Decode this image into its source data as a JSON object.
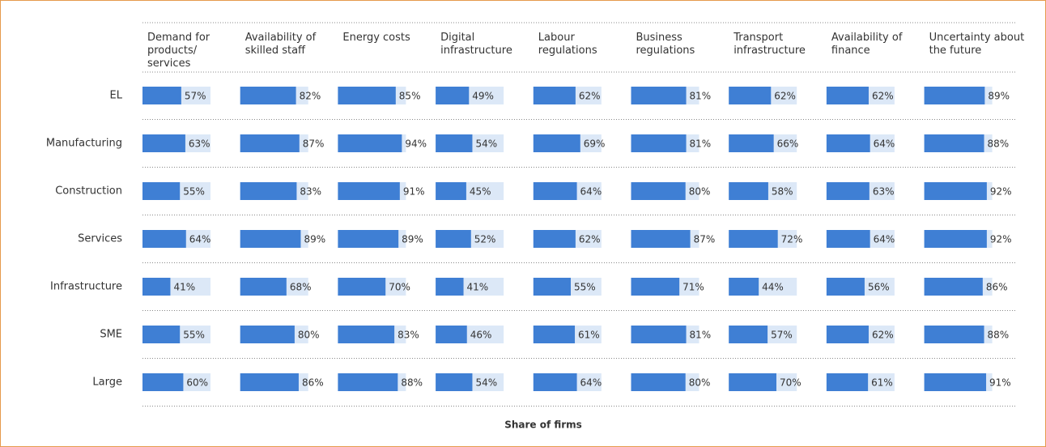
{
  "chart_data": {
    "type": "bar",
    "xlabel": "Share of firms",
    "xlim": [
      0,
      100
    ],
    "color": "#3f7fd4",
    "categories": [
      "EL",
      "Manufacturing",
      "Construction",
      "Services",
      "Infrastructure",
      "SME",
      "Large"
    ],
    "series": [
      {
        "name": "Demand for products/ services",
        "values": [
          57,
          63,
          55,
          64,
          41,
          55,
          60
        ],
        "value_labels": [
          "57%",
          "63%",
          "55%",
          "64%",
          "41%",
          "55%",
          "60%"
        ]
      },
      {
        "name": "Availability of skilled staff",
        "values": [
          82,
          87,
          83,
          89,
          68,
          80,
          86
        ],
        "value_labels": [
          "82%",
          "87%",
          "83%",
          "89%",
          "68%",
          "80%",
          "86%"
        ]
      },
      {
        "name": "Energy costs",
        "values": [
          85,
          94,
          91,
          89,
          70,
          83,
          88
        ],
        "value_labels": [
          "85%",
          "94%",
          "91%",
          "89%",
          "70%",
          "83%",
          "88%"
        ]
      },
      {
        "name": "Digital infrastructure",
        "values": [
          49,
          54,
          45,
          52,
          41,
          46,
          54
        ],
        "value_labels": [
          "49%",
          "54%",
          "45%",
          "52%",
          "41%",
          "46%",
          "54%"
        ]
      },
      {
        "name": "Labour regulations",
        "values": [
          62,
          69,
          64,
          62,
          55,
          61,
          64
        ],
        "value_labels": [
          "62%",
          "69%",
          "64%",
          "62%",
          "55%",
          "61%",
          "64%"
        ]
      },
      {
        "name": "Business regulations",
        "values": [
          81,
          81,
          80,
          87,
          71,
          81,
          80
        ],
        "value_labels": [
          "81%",
          "81%",
          "80%",
          "87%",
          "71%",
          "81%",
          "80%"
        ]
      },
      {
        "name": "Transport infrastructure",
        "values": [
          62,
          66,
          58,
          72,
          44,
          57,
          70
        ],
        "value_labels": [
          "62%",
          "66%",
          "58%",
          "72%",
          "44%",
          "57%",
          "70%"
        ]
      },
      {
        "name": "Availability of finance",
        "values": [
          62,
          64,
          63,
          64,
          56,
          62,
          61
        ],
        "value_labels": [
          "62%",
          "64%",
          "63%",
          "64%",
          "56%",
          "62%",
          "61%"
        ]
      },
      {
        "name": "Uncertainty about the future",
        "values": [
          89,
          88,
          92,
          92,
          86,
          88,
          91
        ],
        "value_labels": [
          "89%",
          "88%",
          "92%",
          "92%",
          "86%",
          "88%",
          "91%"
        ]
      }
    ]
  }
}
